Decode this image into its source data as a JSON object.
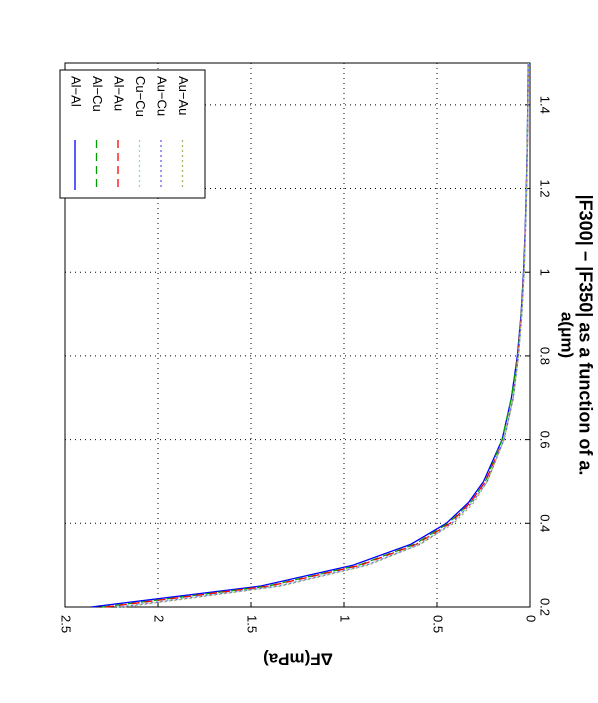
{
  "chart_data": {
    "type": "line",
    "title": "|F300| − |F350| as a function of a.",
    "xlabel": "a(μm)",
    "ylabel": "ΔF(mPa)",
    "x": [
      0.2,
      0.25,
      0.3,
      0.35,
      0.4,
      0.45,
      0.5,
      0.6,
      0.7,
      0.8,
      0.9,
      1.0,
      1.1,
      1.2,
      1.3,
      1.4,
      1.5
    ],
    "series": [
      {
        "name": "Al−Al",
        "color": "#0000ff",
        "dash": "solid",
        "values": [
          2.36,
          1.45,
          0.95,
          0.64,
          0.45,
          0.33,
          0.25,
          0.15,
          0.1,
          0.068,
          0.048,
          0.035,
          0.026,
          0.02,
          0.015,
          0.012,
          0.01
        ]
      },
      {
        "name": "Al−Cu",
        "color": "#00a000",
        "dash": "dashed",
        "values": [
          2.3,
          1.41,
          0.92,
          0.62,
          0.44,
          0.32,
          0.24,
          0.15,
          0.1,
          0.066,
          0.047,
          0.034,
          0.025,
          0.019,
          0.015,
          0.012,
          0.01
        ]
      },
      {
        "name": "Al−Au",
        "color": "#ff0000",
        "dash": "dashed",
        "values": [
          2.28,
          1.4,
          0.91,
          0.61,
          0.43,
          0.32,
          0.24,
          0.14,
          0.09,
          0.065,
          0.046,
          0.033,
          0.025,
          0.019,
          0.014,
          0.011,
          0.009
        ]
      },
      {
        "name": "Cu−Cu",
        "color": "#7fdfdf",
        "dash": "dotted",
        "values": [
          2.22,
          1.36,
          0.88,
          0.6,
          0.42,
          0.31,
          0.23,
          0.14,
          0.09,
          0.063,
          0.045,
          0.032,
          0.024,
          0.018,
          0.014,
          0.011,
          0.009
        ]
      },
      {
        "name": "Au−Cu",
        "color": "#6060ff",
        "dash": "dotted",
        "values": [
          2.2,
          1.35,
          0.88,
          0.59,
          0.42,
          0.31,
          0.23,
          0.14,
          0.09,
          0.062,
          0.044,
          0.032,
          0.024,
          0.018,
          0.014,
          0.011,
          0.009
        ]
      },
      {
        "name": "Au−Au",
        "color": "#b0b060",
        "dash": "dotted",
        "values": [
          2.18,
          1.34,
          0.87,
          0.59,
          0.41,
          0.3,
          0.23,
          0.14,
          0.09,
          0.062,
          0.044,
          0.031,
          0.024,
          0.018,
          0.014,
          0.011,
          0.009
        ]
      }
    ],
    "xlim": [
      0.2,
      1.5
    ],
    "xticks": [
      0.2,
      0.4,
      0.6,
      0.8,
      1,
      1.2,
      1.4
    ],
    "ylim": [
      0,
      2.5
    ],
    "yticks": [
      0,
      0.5,
      1,
      1.5,
      2,
      2.5
    ],
    "grid": true,
    "legend": "northeast"
  }
}
